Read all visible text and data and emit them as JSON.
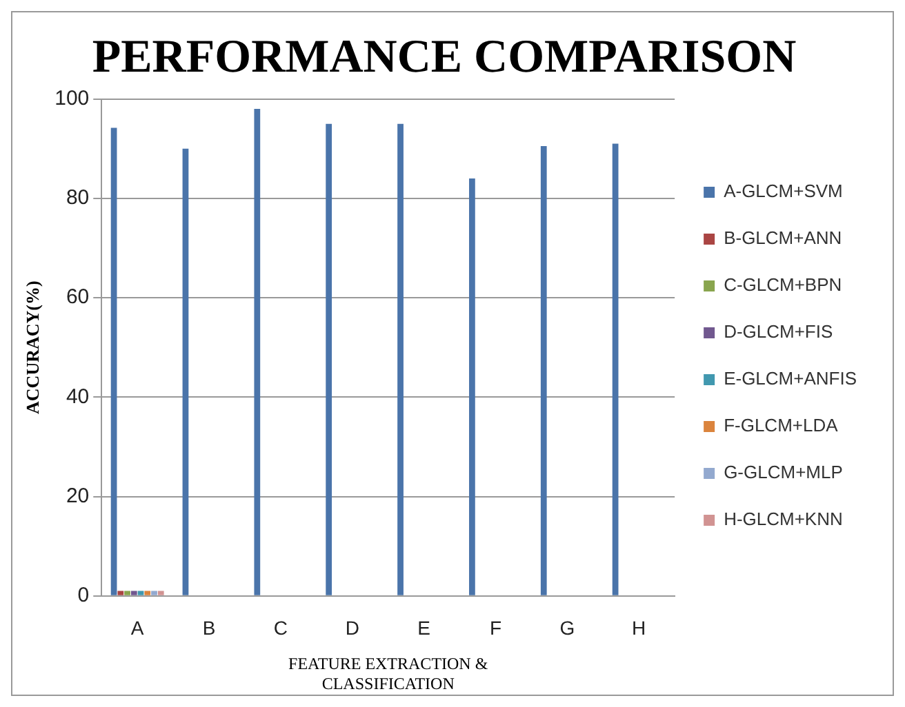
{
  "chart_data": {
    "type": "bar",
    "title": "PERFORMANCE COMPARISON",
    "xlabel": "FEATURE EXTRACTION & CLASSIFICATION",
    "ylabel": "ACCURACY(%)",
    "categories": [
      "A",
      "B",
      "C",
      "D",
      "E",
      "F",
      "G",
      "H"
    ],
    "series": [
      {
        "name": "A-GLCM+SVM",
        "color": "#4a74aa",
        "values": [
          94.2,
          90,
          98,
          95,
          95,
          84,
          90.5,
          91
        ]
      },
      {
        "name": "B-GLCM+ANN",
        "color": "#aa4543",
        "values": [
          1,
          null,
          null,
          null,
          null,
          null,
          null,
          null
        ]
      },
      {
        "name": "C-GLCM+BPN",
        "color": "#89a54e",
        "values": [
          1,
          null,
          null,
          null,
          null,
          null,
          null,
          null
        ]
      },
      {
        "name": "D-GLCM+FIS",
        "color": "#71588f",
        "values": [
          1,
          null,
          null,
          null,
          null,
          null,
          null,
          null
        ]
      },
      {
        "name": "E-GLCM+ANFIS",
        "color": "#4198af",
        "values": [
          1,
          null,
          null,
          null,
          null,
          null,
          null,
          null
        ]
      },
      {
        "name": "F-GLCM+LDA",
        "color": "#db843d",
        "values": [
          1,
          null,
          null,
          null,
          null,
          null,
          null,
          null
        ]
      },
      {
        "name": "G-GLCM+MLP",
        "color": "#93a9cf",
        "values": [
          1,
          null,
          null,
          null,
          null,
          null,
          null,
          null
        ]
      },
      {
        "name": "H-GLCM+KNN",
        "color": "#d19392",
        "values": [
          1,
          null,
          null,
          null,
          null,
          null,
          null,
          null
        ]
      }
    ],
    "ylim": [
      0,
      100
    ],
    "yticks": [
      0,
      20,
      40,
      60,
      80,
      100
    ],
    "grid": "y",
    "legend": "right"
  }
}
